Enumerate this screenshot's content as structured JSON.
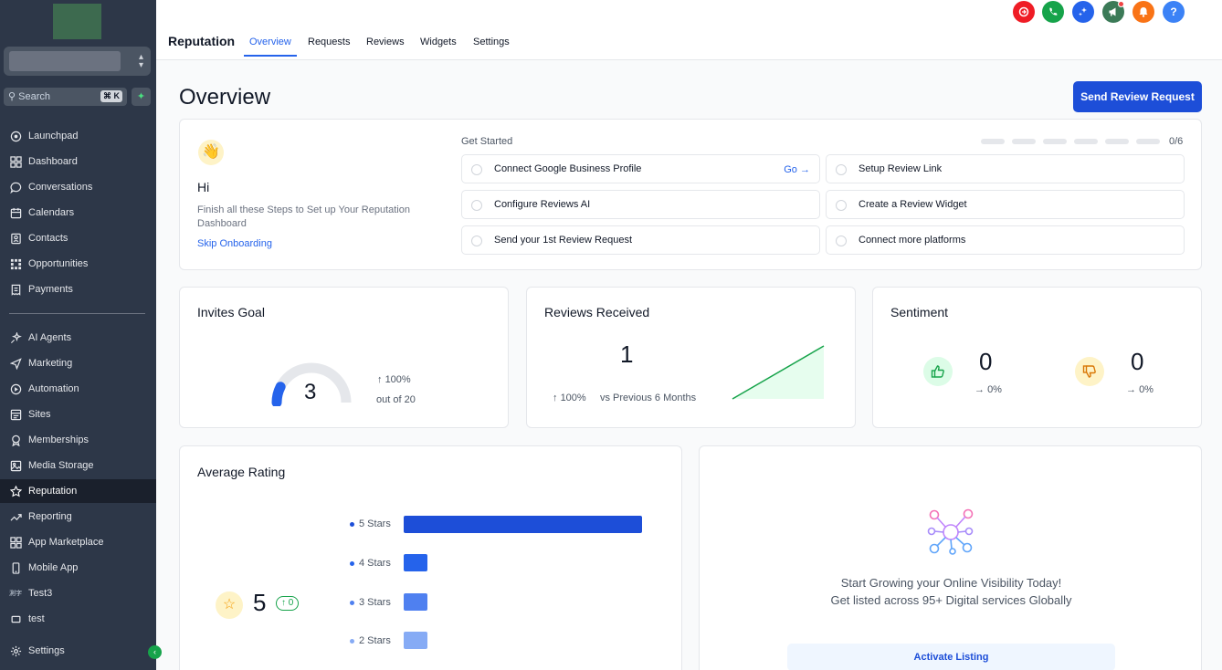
{
  "sidebar": {
    "search": {
      "label": "Search",
      "shortcut": "⌘ K"
    },
    "items": [
      {
        "label": "Launchpad",
        "icon": "launchpad-icon"
      },
      {
        "label": "Dashboard",
        "icon": "dashboard-icon"
      },
      {
        "label": "Conversations",
        "icon": "chat-icon"
      },
      {
        "label": "Calendars",
        "icon": "calendar-icon"
      },
      {
        "label": "Contacts",
        "icon": "contacts-icon"
      },
      {
        "label": "Opportunities",
        "icon": "opportunities-icon"
      },
      {
        "label": "Payments",
        "icon": "payments-icon"
      },
      {
        "label": "AI Agents",
        "icon": "ai-agents-icon"
      },
      {
        "label": "Marketing",
        "icon": "marketing-icon"
      },
      {
        "label": "Automation",
        "icon": "automation-icon"
      },
      {
        "label": "Sites",
        "icon": "sites-icon"
      },
      {
        "label": "Memberships",
        "icon": "memberships-icon"
      },
      {
        "label": "Media Storage",
        "icon": "media-icon"
      },
      {
        "label": "Reputation",
        "icon": "star-icon"
      },
      {
        "label": "Reporting",
        "icon": "reporting-icon"
      },
      {
        "label": "App Marketplace",
        "icon": "marketplace-icon"
      },
      {
        "label": "Mobile App",
        "icon": "mobile-icon"
      },
      {
        "label": "Test3",
        "icon": "custom-icon"
      },
      {
        "label": "test",
        "icon": "square-icon"
      },
      {
        "label": "Settings",
        "icon": "gear-icon"
      }
    ],
    "active": "Reputation"
  },
  "header": {
    "title": "Reputation",
    "tabs": [
      "Overview",
      "Requests",
      "Reviews",
      "Widgets",
      "Settings"
    ],
    "active_tab": "Overview",
    "icon_colors": [
      "#ef1c25",
      "#16a34a",
      "#2563eb",
      "#3b7a57",
      "#f97316",
      "#3b82f6"
    ]
  },
  "page": {
    "title": "Overview",
    "send_button": "Send Review Request"
  },
  "onboarding": {
    "greeting": "Hi",
    "description": "Finish all these Steps to Set up Your Reputation Dashboard",
    "skip": "Skip Onboarding",
    "get_started": "Get Started",
    "progress": "0/6",
    "steps": [
      "Connect Google Business Profile",
      "Setup Review Link",
      "Configure Reviews AI",
      "Create a Review Widget",
      "Send your 1st Review Request",
      "Connect more platforms"
    ],
    "go_label": "Go"
  },
  "invites": {
    "title": "Invites Goal",
    "value": "3",
    "change": "100%",
    "out_of": "out of 20",
    "fraction": 0.15
  },
  "reviews_received": {
    "title": "Reviews Received",
    "value": "1",
    "change": "100%",
    "compare": "vs Previous 6 Months"
  },
  "sentiment": {
    "title": "Sentiment",
    "positive": {
      "value": "0",
      "change": "0%"
    },
    "negative": {
      "value": "0",
      "change": "0%"
    }
  },
  "average_rating": {
    "title": "Average Rating",
    "value": "5",
    "change": "0",
    "bars": [
      {
        "label": "5 Stars",
        "fraction": 1.0,
        "color": "#1d4ed8"
      },
      {
        "label": "4 Stars",
        "fraction": 0.1,
        "color": "#2563eb"
      },
      {
        "label": "3 Stars",
        "fraction": 0.1,
        "color": "#4f80f0"
      },
      {
        "label": "2 Stars",
        "fraction": 0.1,
        "color": "#86abf5"
      }
    ]
  },
  "listing": {
    "line1": "Start Growing your Online Visibility Today!",
    "line2": "Get listed across 95+ Digital services Globally",
    "button": "Activate Listing"
  }
}
